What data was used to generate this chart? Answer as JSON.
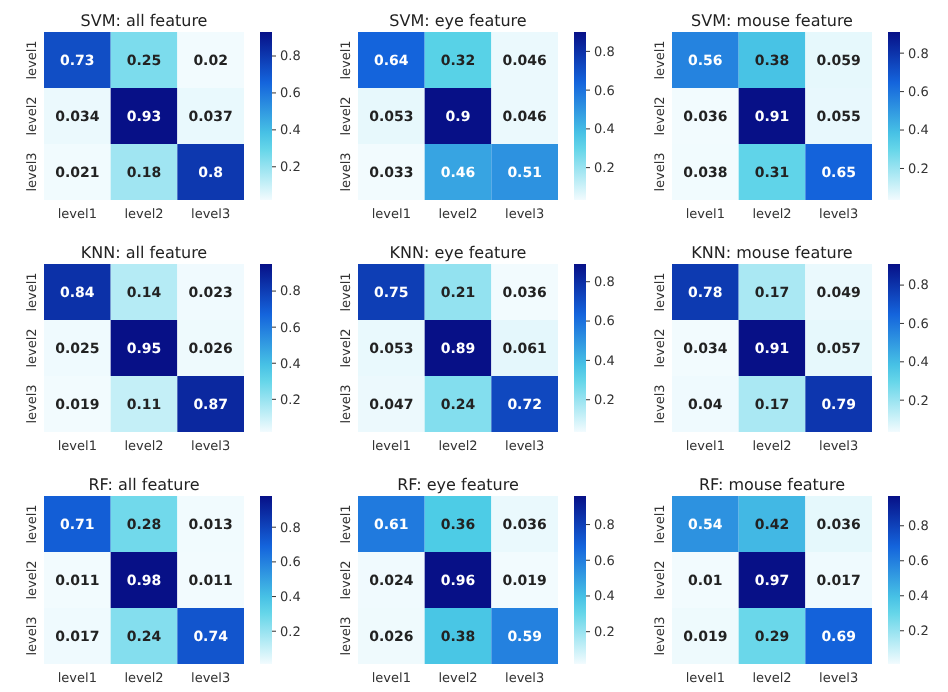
{
  "chart_data": [
    {
      "type": "heatmap",
      "title": "SVM: all feature",
      "categories": [
        "level1",
        "level2",
        "level3"
      ],
      "y_categories": [
        "level1",
        "level2",
        "level3"
      ],
      "cells": [
        [
          0.73,
          0.25,
          0.02
        ],
        [
          0.034,
          0.93,
          0.037
        ],
        [
          0.021,
          0.18,
          0.8
        ]
      ],
      "clim": [
        0.02,
        0.93
      ],
      "cticks": [
        0.2,
        0.4,
        0.6,
        0.8
      ],
      "data_labels": true
    },
    {
      "type": "heatmap",
      "title": "SVM: eye feature",
      "categories": [
        "level1",
        "level2",
        "level3"
      ],
      "y_categories": [
        "level1",
        "level2",
        "level3"
      ],
      "cells": [
        [
          0.64,
          0.32,
          0.046
        ],
        [
          0.053,
          0.9,
          0.046
        ],
        [
          0.033,
          0.46,
          0.51
        ]
      ],
      "clim": [
        0.033,
        0.9
      ],
      "cticks": [
        0.2,
        0.4,
        0.6,
        0.8
      ],
      "data_labels": true
    },
    {
      "type": "heatmap",
      "title": "SVM: mouse feature",
      "categories": [
        "level1",
        "level2",
        "level3"
      ],
      "y_categories": [
        "level1",
        "level2",
        "level3"
      ],
      "cells": [
        [
          0.56,
          0.38,
          0.059
        ],
        [
          0.036,
          0.91,
          0.055
        ],
        [
          0.038,
          0.31,
          0.65
        ]
      ],
      "clim": [
        0.036,
        0.91
      ],
      "cticks": [
        0.2,
        0.4,
        0.6,
        0.8
      ],
      "data_labels": true
    },
    {
      "type": "heatmap",
      "title": "KNN: all feature",
      "categories": [
        "level1",
        "level2",
        "level3"
      ],
      "y_categories": [
        "level1",
        "level2",
        "level3"
      ],
      "cells": [
        [
          0.84,
          0.14,
          0.023
        ],
        [
          0.025,
          0.95,
          0.026
        ],
        [
          0.019,
          0.11,
          0.87
        ]
      ],
      "clim": [
        0.019,
        0.95
      ],
      "cticks": [
        0.2,
        0.4,
        0.6,
        0.8
      ],
      "data_labels": true
    },
    {
      "type": "heatmap",
      "title": "KNN: eye feature",
      "categories": [
        "level1",
        "level2",
        "level3"
      ],
      "y_categories": [
        "level1",
        "level2",
        "level3"
      ],
      "cells": [
        [
          0.75,
          0.21,
          0.036
        ],
        [
          0.053,
          0.89,
          0.061
        ],
        [
          0.047,
          0.24,
          0.72
        ]
      ],
      "clim": [
        0.036,
        0.89
      ],
      "cticks": [
        0.2,
        0.4,
        0.6,
        0.8
      ],
      "data_labels": true
    },
    {
      "type": "heatmap",
      "title": "KNN: mouse feature",
      "categories": [
        "level1",
        "level2",
        "level3"
      ],
      "y_categories": [
        "level1",
        "level2",
        "level3"
      ],
      "cells": [
        [
          0.78,
          0.17,
          0.049
        ],
        [
          0.034,
          0.91,
          0.057
        ],
        [
          0.04,
          0.17,
          0.79
        ]
      ],
      "clim": [
        0.034,
        0.91
      ],
      "cticks": [
        0.2,
        0.4,
        0.6,
        0.8
      ],
      "data_labels": true
    },
    {
      "type": "heatmap",
      "title": "RF: all feature",
      "categories": [
        "level1",
        "level2",
        "level3"
      ],
      "y_categories": [
        "level1",
        "level2",
        "level3"
      ],
      "cells": [
        [
          0.71,
          0.28,
          0.013
        ],
        [
          0.011,
          0.98,
          0.011
        ],
        [
          0.017,
          0.24,
          0.74
        ]
      ],
      "clim": [
        0.011,
        0.98
      ],
      "cticks": [
        0.2,
        0.4,
        0.6,
        0.8
      ],
      "data_labels": true
    },
    {
      "type": "heatmap",
      "title": "RF: eye feature",
      "categories": [
        "level1",
        "level2",
        "level3"
      ],
      "y_categories": [
        "level1",
        "level2",
        "level3"
      ],
      "cells": [
        [
          0.61,
          0.36,
          0.036
        ],
        [
          0.024,
          0.96,
          0.019
        ],
        [
          0.026,
          0.38,
          0.59
        ]
      ],
      "clim": [
        0.019,
        0.96
      ],
      "cticks": [
        0.2,
        0.4,
        0.6,
        0.8
      ],
      "data_labels": true
    },
    {
      "type": "heatmap",
      "title": "RF: mouse feature",
      "categories": [
        "level1",
        "level2",
        "level3"
      ],
      "y_categories": [
        "level1",
        "level2",
        "level3"
      ],
      "cells": [
        [
          0.54,
          0.42,
          0.036
        ],
        [
          0.01,
          0.97,
          0.017
        ],
        [
          0.019,
          0.29,
          0.69
        ]
      ],
      "clim": [
        0.01,
        0.97
      ],
      "cticks": [
        0.2,
        0.4,
        0.6,
        0.8
      ],
      "data_labels": true
    }
  ]
}
